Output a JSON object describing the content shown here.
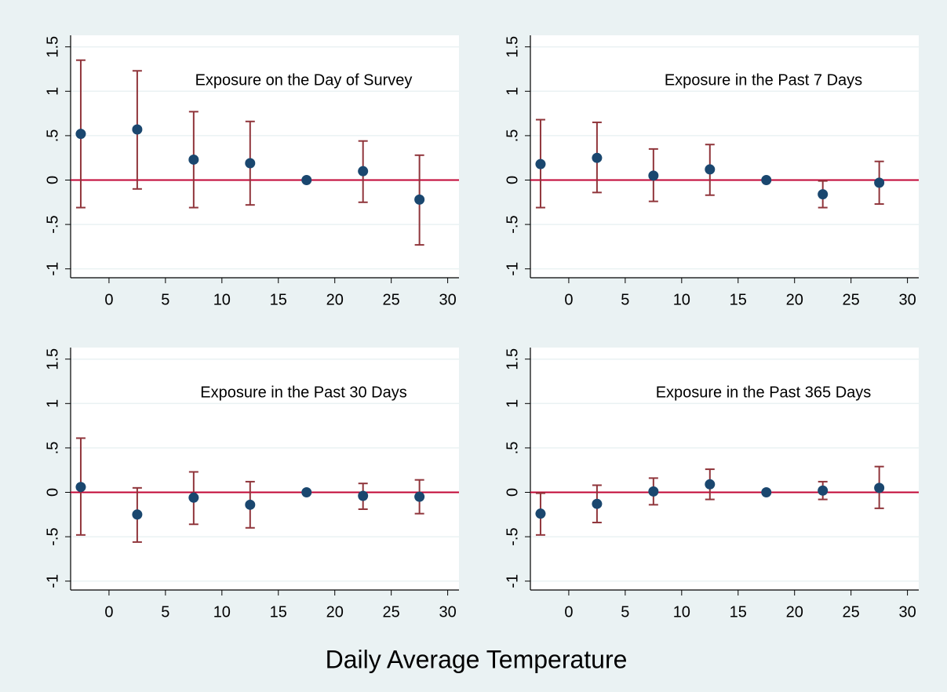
{
  "chart_data": [
    {
      "type": "errorbar",
      "title": "Exposure on the Day of Survey",
      "x": [
        -2.5,
        2.5,
        7.5,
        12.5,
        17.5,
        22.5,
        27.5
      ],
      "values": [
        0.52,
        0.57,
        0.23,
        0.19,
        0,
        0.1,
        -0.22
      ],
      "lower": [
        -0.31,
        -0.1,
        -0.31,
        -0.28,
        0,
        -0.25,
        -0.73
      ],
      "upper": [
        1.35,
        1.23,
        0.77,
        0.66,
        0,
        0.44,
        0.28
      ],
      "xlim": [
        -3.4,
        31
      ],
      "ylim": [
        -1.1,
        1.63
      ],
      "xticks": [
        0,
        5,
        10,
        15,
        20,
        25,
        30
      ],
      "yticks": [
        -1,
        {
          "value": -0.5,
          "label": "-.5"
        },
        0,
        {
          "value": 0.5,
          "label": ".5"
        },
        1,
        1.5
      ],
      "refline": 0,
      "grid": true,
      "color": "#1a476f",
      "bar_color": "#90353b",
      "refline_color": "#c10534"
    },
    {
      "type": "errorbar",
      "title": "Exposure in the Past 7 Days",
      "x": [
        -2.5,
        2.5,
        7.5,
        12.5,
        17.5,
        22.5,
        27.5
      ],
      "values": [
        0.18,
        0.25,
        0.05,
        0.12,
        0,
        -0.16,
        -0.03
      ],
      "lower": [
        -0.31,
        -0.14,
        -0.24,
        -0.17,
        0,
        -0.31,
        -0.27
      ],
      "upper": [
        0.68,
        0.65,
        0.35,
        0.4,
        0,
        -0.01,
        0.21
      ],
      "xlim": [
        -3.4,
        31
      ],
      "ylim": [
        -1.1,
        1.63
      ],
      "xticks": [
        0,
        5,
        10,
        15,
        20,
        25,
        30
      ],
      "yticks": [
        -1,
        {
          "value": -0.5,
          "label": "-.5"
        },
        0,
        {
          "value": 0.5,
          "label": ".5"
        },
        1,
        1.5
      ],
      "refline": 0,
      "grid": true,
      "color": "#1a476f",
      "bar_color": "#90353b",
      "refline_color": "#c10534"
    },
    {
      "type": "errorbar",
      "title": "Exposure in the Past 30 Days",
      "x": [
        -2.5,
        2.5,
        7.5,
        12.5,
        17.5,
        22.5,
        27.5
      ],
      "values": [
        0.06,
        -0.25,
        -0.06,
        -0.14,
        0,
        -0.04,
        -0.05
      ],
      "lower": [
        -0.48,
        -0.56,
        -0.36,
        -0.4,
        0,
        -0.19,
        -0.24
      ],
      "upper": [
        0.61,
        0.05,
        0.23,
        0.12,
        0,
        0.1,
        0.14
      ],
      "xlim": [
        -3.4,
        31
      ],
      "ylim": [
        -1.1,
        1.63
      ],
      "xticks": [
        0,
        5,
        10,
        15,
        20,
        25,
        30
      ],
      "yticks": [
        -1,
        {
          "value": -0.5,
          "label": "-.5"
        },
        0,
        {
          "value": 0.5,
          "label": ".5"
        },
        1,
        1.5
      ],
      "refline": 0,
      "grid": true,
      "color": "#1a476f",
      "bar_color": "#90353b",
      "refline_color": "#c10534"
    },
    {
      "type": "errorbar",
      "title": "Exposure in the Past 365 Days",
      "x": [
        -2.5,
        2.5,
        7.5,
        12.5,
        17.5,
        22.5,
        27.5
      ],
      "values": [
        -0.24,
        -0.13,
        0.01,
        0.09,
        0,
        0.02,
        0.05
      ],
      "lower": [
        -0.48,
        -0.34,
        -0.14,
        -0.08,
        0,
        -0.08,
        -0.18
      ],
      "upper": [
        -0.01,
        0.08,
        0.16,
        0.26,
        0,
        0.12,
        0.29
      ],
      "xlim": [
        -3.4,
        31
      ],
      "ylim": [
        -1.1,
        1.63
      ],
      "xticks": [
        0,
        5,
        10,
        15,
        20,
        25,
        30
      ],
      "yticks": [
        -1,
        {
          "value": -0.5,
          "label": "-.5"
        },
        0,
        {
          "value": 0.5,
          "label": ".5"
        },
        1,
        1.5
      ],
      "refline": 0,
      "grid": true,
      "color": "#1a476f",
      "bar_color": "#90353b",
      "refline_color": "#c10534"
    }
  ],
  "xlabel": "Daily Average Temperature"
}
